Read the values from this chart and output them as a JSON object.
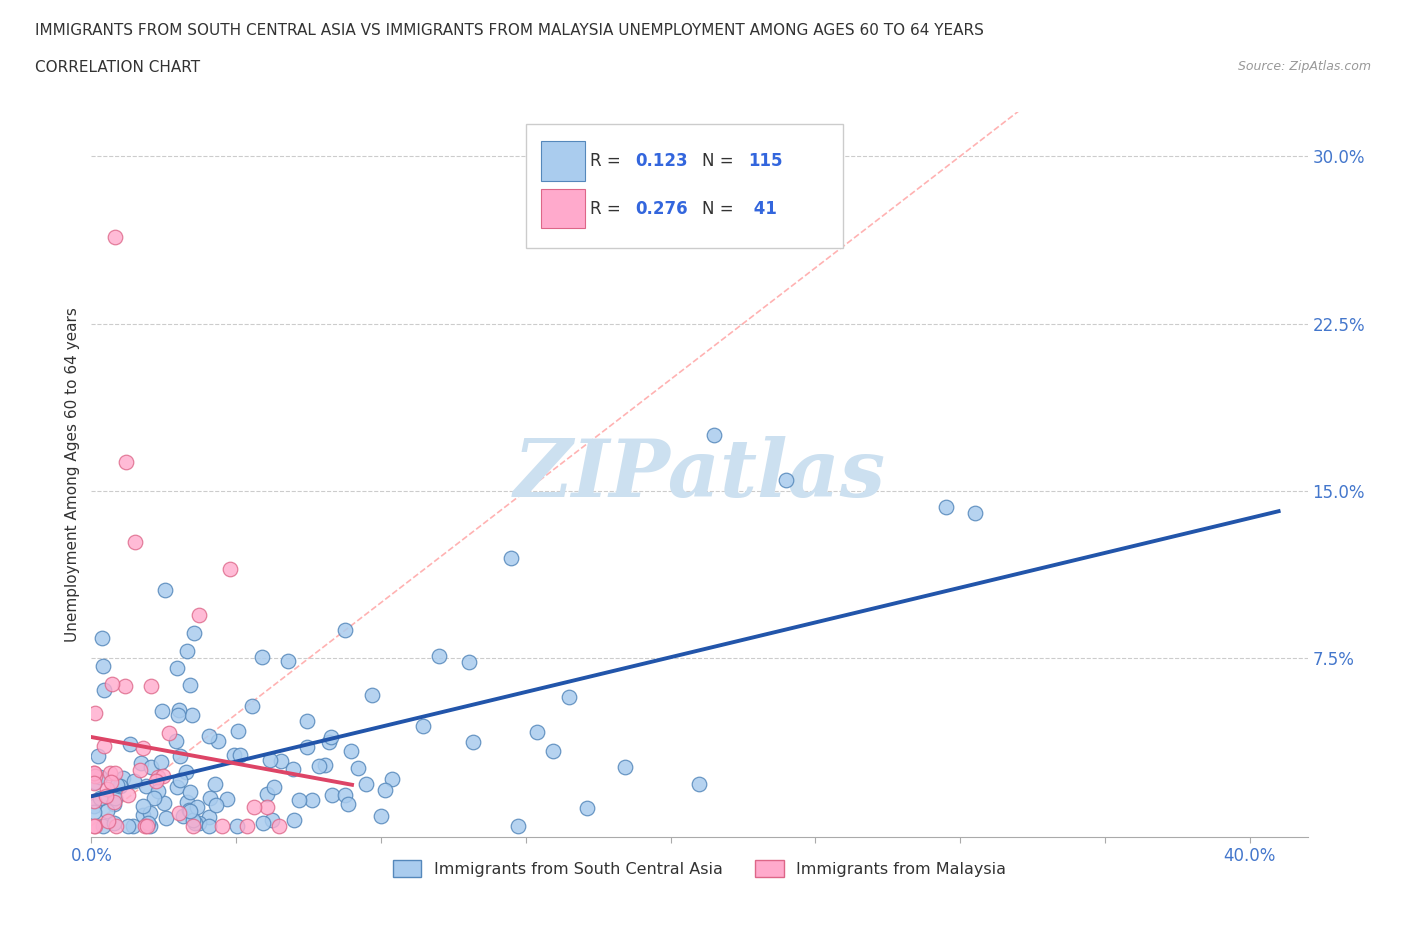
{
  "title_line1": "IMMIGRANTS FROM SOUTH CENTRAL ASIA VS IMMIGRANTS FROM MALAYSIA UNEMPLOYMENT AMONG AGES 60 TO 64 YEARS",
  "title_line2": "CORRELATION CHART",
  "source_text": "Source: ZipAtlas.com",
  "ylabel": "Unemployment Among Ages 60 to 64 years",
  "xlim": [
    0.0,
    0.42
  ],
  "ylim": [
    -0.005,
    0.32
  ],
  "ytick_right_labels": [
    "30.0%",
    "22.5%",
    "15.0%",
    "7.5%"
  ],
  "ytick_right_values": [
    0.3,
    0.225,
    0.15,
    0.075
  ],
  "series1_color": "#aaccee",
  "series1_edge_color": "#5588bb",
  "series2_color": "#ffaacc",
  "series2_edge_color": "#dd6688",
  "trendline1_color": "#2255aa",
  "trendline2_color": "#dd4466",
  "diag_line_color": "#ffaaaa",
  "watermark_text": "ZIPatlas",
  "watermark_color": "#cce0f0",
  "title_color": "#333333",
  "axis_label_color": "#333333",
  "tick_label_color": "#4477cc",
  "legend_text_dark": "#333333",
  "legend_text_blue": "#3366dd",
  "background_color": "#ffffff",
  "grid_color": "#cccccc",
  "legend_label1": "Immigrants from South Central Asia",
  "legend_label2": "Immigrants from Malaysia",
  "N1": 115,
  "N2": 41,
  "R1": 0.123,
  "R2": 0.276
}
